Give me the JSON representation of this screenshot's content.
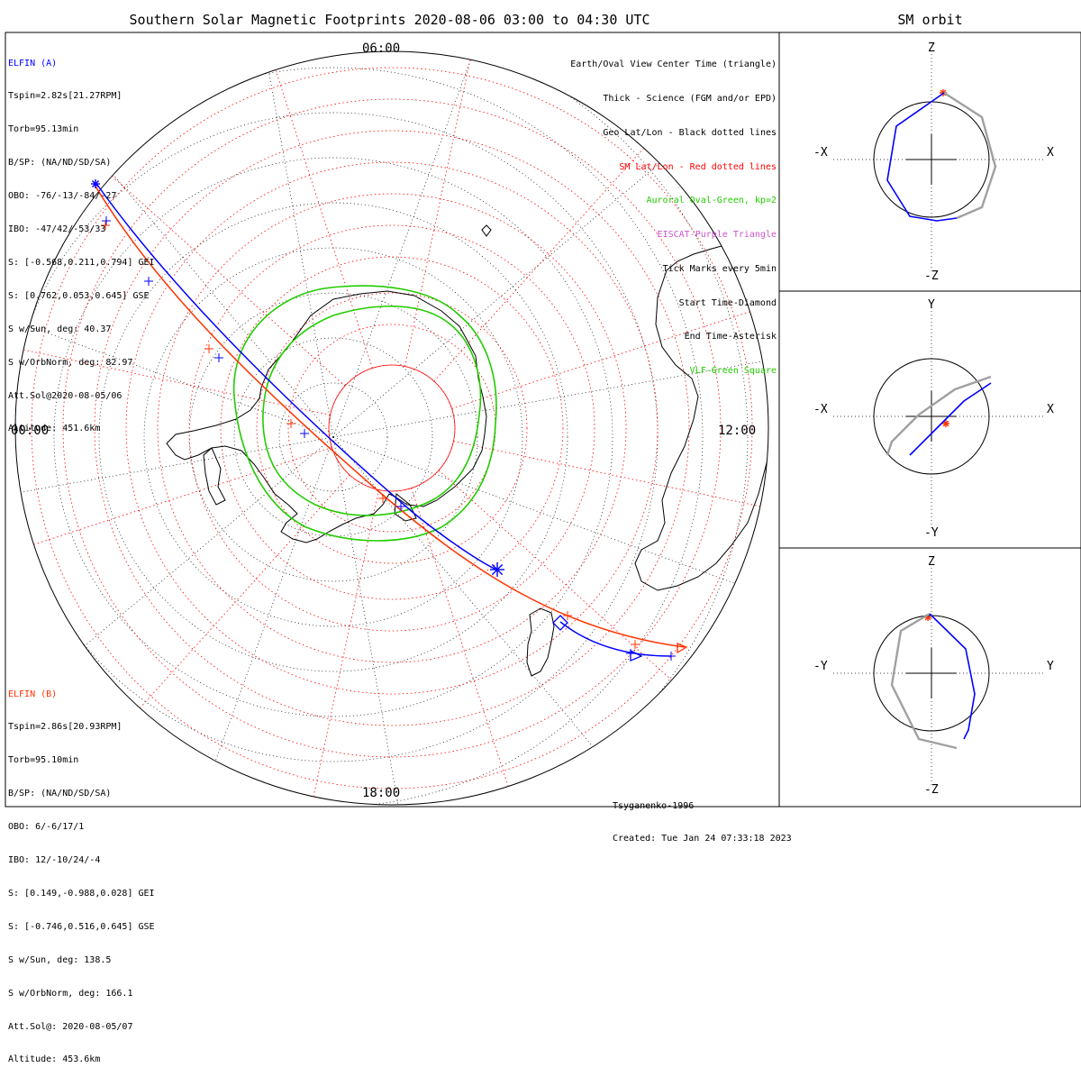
{
  "title": "Southern Solar Magnetic Footprints 2020-08-06 03:00 to 04:30 UTC",
  "orbit_title": "SM orbit",
  "clock_labels": {
    "top": "06:00",
    "left": "00:00",
    "right": "12:00",
    "bottom": "18:00"
  },
  "colors": {
    "elfin_a": "#0000ff",
    "elfin_b": "#ff3300",
    "oval": "#22cc00",
    "grid_sm": "#ff0000",
    "grid_geo": "#000000",
    "orbit_gray": "#a0a0a0"
  },
  "elfin_a": {
    "lines": [
      "ELFIN (A)",
      "Tspin=2.82s[21.27RPM]",
      "Torb=95.13min",
      "B/SP: (NA/ND/SD/SA)",
      "OBO: -76/-13/-84/-27",
      "IBO: -47/42/-53/33",
      "S: [-0.568,0.211,0.794] GEI",
      "S: [0.762,0.053,0.645] GSE",
      "S w/Sun, deg: 40.37",
      "S w/OrbNorm, deg: 82.97",
      "Att.Sol@2020-08-05/06",
      "Altitude: 451.6km"
    ]
  },
  "elfin_b": {
    "lines": [
      "ELFIN (B)",
      "Tspin=2.86s[20.93RPM]",
      "Torb=95.10min",
      "B/SP: (NA/ND/SD/SA)",
      "OBO: 6/-6/17/1",
      "IBO: 12/-10/24/-4",
      "S: [0.149,-0.988,0.028] GEI",
      "S: [-0.746,0.516,0.645] GSE",
      "S w/Sun, deg: 138.5",
      "S w/OrbNorm, deg: 166.1",
      "Att.Sol@: 2020-08-05/07",
      "Altitude: 453.6km"
    ]
  },
  "legend": [
    {
      "text": "Earth/Oval View Center Time (triangle)",
      "color": "#000000"
    },
    {
      "text": "Thick - Science (FGM and/or EPD)",
      "color": "#000000"
    },
    {
      "text": "Geo Lat/Lon - Black dotted lines",
      "color": "#000000"
    },
    {
      "text": "SM Lat/Lon - Red dotted lines",
      "color": "#ff0000"
    },
    {
      "text": "Auroral Oval-Green, kp=2",
      "color": "#22cc00"
    },
    {
      "text": "EISCAT-Purple Triangle",
      "color": "#cc55cc"
    },
    {
      "text": "Tick Marks every 5min",
      "color": "#000000"
    },
    {
      "text": "Start Time-Diamond",
      "color": "#000000"
    },
    {
      "text": "End Time-Asterisk",
      "color": "#000000"
    },
    {
      "text": "VLF-Green Square",
      "color": "#22cc00"
    }
  ],
  "credits": {
    "model": "Tsyganenko-1996",
    "created": "Created: Tue Jan 24 07:33:18 2023"
  },
  "orbit_panels": [
    {
      "name": "xz",
      "top": "Z",
      "bottom": "-Z",
      "left": "-X",
      "right": "X"
    },
    {
      "name": "xy",
      "top": "Y",
      "bottom": "-Y",
      "left": "-X",
      "right": "X"
    },
    {
      "name": "yz",
      "top": "Z",
      "bottom": "-Z",
      "left": "-Y",
      "right": "Y"
    }
  ]
}
